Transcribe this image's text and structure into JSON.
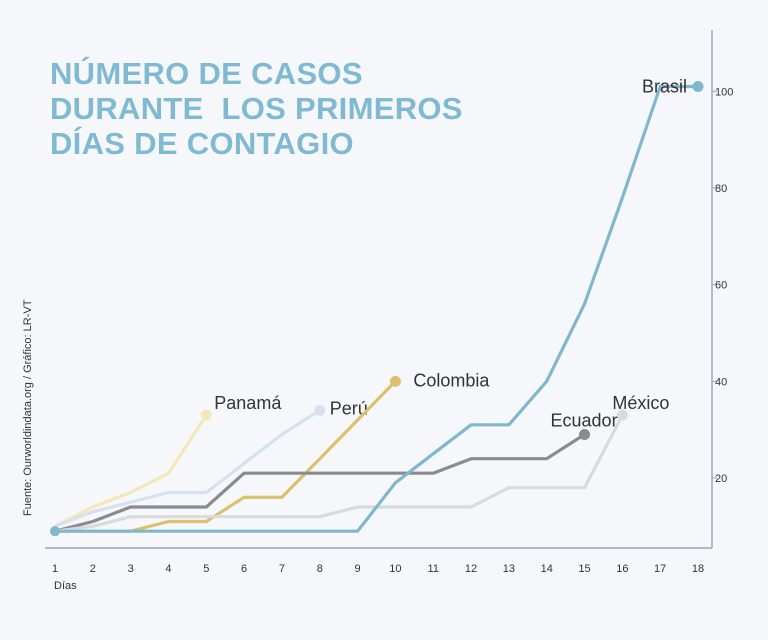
{
  "title_lines": [
    "NÚMERO DE CASOS",
    "DURANTE  LOS PRIMEROS",
    "DÍAS DE CONTAGIO"
  ],
  "source": "Fuente: Ourworldindata.org / Gráfico: LR-VT",
  "colors": {
    "background": "#f6f7fb",
    "title": "#7fbad2",
    "axis": "#8fa9b6"
  },
  "chart_data": {
    "type": "line",
    "title": "NÚMERO DE CASOS DURANTE  LOS PRIMEROS DÍAS DE CONTAGIO",
    "xlabel": "Días",
    "ylabel": "",
    "x_ticks": [
      1,
      2,
      3,
      4,
      5,
      6,
      7,
      8,
      9,
      10,
      11,
      12,
      13,
      14,
      15,
      16,
      17,
      18
    ],
    "y_ticks": [
      20,
      40,
      60,
      80,
      100
    ],
    "ylim": [
      8,
      104
    ],
    "grid": false,
    "y_axis_side": "right",
    "series": [
      {
        "name": "Panamá",
        "color": "#f6e7b8",
        "x": [
          1,
          2,
          3,
          4,
          5
        ],
        "y": [
          10,
          14,
          17,
          21,
          33
        ]
      },
      {
        "name": "Perú",
        "color": "#d8e0ee",
        "x": [
          1,
          2,
          3,
          4,
          5,
          6,
          7,
          8
        ],
        "y": [
          10,
          13,
          15,
          17,
          17,
          23,
          29,
          34
        ]
      },
      {
        "name": "Colombia",
        "color": "#dcc06c",
        "x": [
          1,
          2,
          3,
          4,
          5,
          6,
          7,
          8,
          9,
          10
        ],
        "y": [
          9,
          9,
          9,
          11,
          11,
          16,
          16,
          24,
          32,
          40
        ]
      },
      {
        "name": "Ecuador",
        "color": "#8a8a90",
        "x": [
          1,
          2,
          3,
          4,
          5,
          6,
          7,
          8,
          9,
          10,
          11,
          12,
          13,
          14,
          15
        ],
        "y": [
          9,
          11,
          14,
          14,
          14,
          21,
          21,
          21,
          21,
          21,
          21,
          24,
          24,
          24,
          29
        ]
      },
      {
        "name": "México",
        "color": "#dadada",
        "x": [
          1,
          2,
          3,
          4,
          5,
          6,
          7,
          8,
          9,
          10,
          11,
          12,
          13,
          14,
          15,
          16
        ],
        "y": [
          9,
          10,
          12,
          12,
          12,
          12,
          12,
          12,
          14,
          14,
          14,
          14,
          18,
          18,
          18,
          33
        ]
      },
      {
        "name": "Brasil",
        "color": "#7fb8cc",
        "x": [
          1,
          2,
          3,
          4,
          5,
          6,
          7,
          8,
          9,
          10,
          11,
          12,
          13,
          14,
          15,
          16,
          17,
          18
        ],
        "y": [
          9,
          9,
          9,
          9,
          9,
          9,
          9,
          9,
          9,
          19,
          25,
          31,
          31,
          40,
          56,
          78,
          101,
          101
        ]
      }
    ]
  }
}
